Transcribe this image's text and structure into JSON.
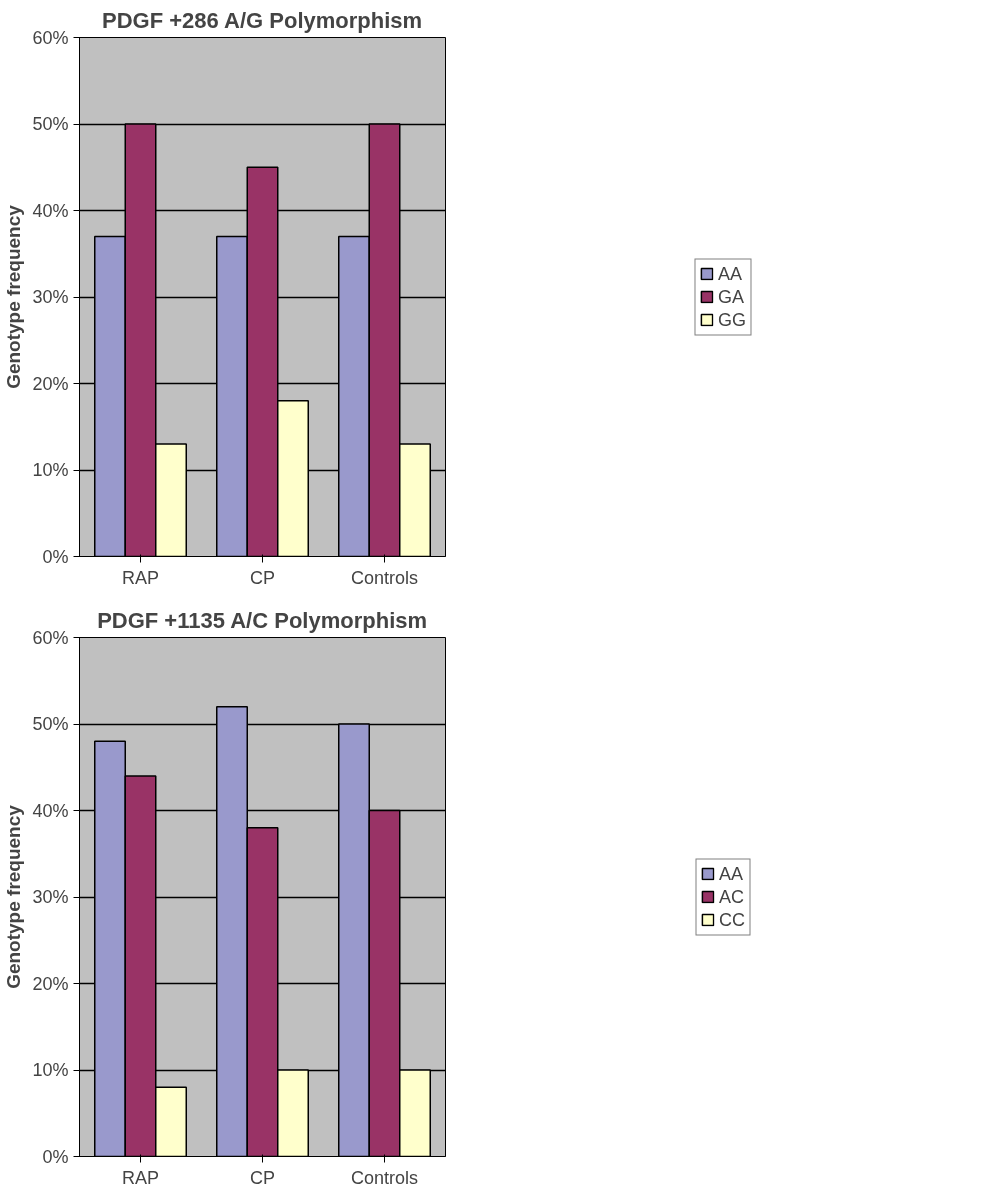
{
  "chart_data": [
    {
      "type": "bar",
      "title": "PDGF +286 A/G Polymorphism",
      "ylabel": "Genotype frequency",
      "categories": [
        "RAP",
        "CP",
        "Controls"
      ],
      "series": [
        {
          "name": "AA",
          "color": "#9999cc",
          "values": [
            37,
            37,
            37
          ]
        },
        {
          "name": "GA",
          "color": "#993366",
          "values": [
            50,
            45,
            50
          ]
        },
        {
          "name": "GG",
          "color": "#ffffcc",
          "values": [
            13,
            18,
            13
          ]
        }
      ],
      "ylim": [
        0,
        60
      ],
      "yticks": [
        {
          "value": 0,
          "label": "0%"
        },
        {
          "value": 10,
          "label": "10%"
        },
        {
          "value": 20,
          "label": "20%"
        },
        {
          "value": 30,
          "label": "30%"
        },
        {
          "value": 40,
          "label": "40%"
        },
        {
          "value": 50,
          "label": "50%"
        },
        {
          "value": 60,
          "label": "60%"
        }
      ],
      "grid": "y",
      "legend": "right"
    },
    {
      "type": "bar",
      "title": "PDGF +1135 A/C Polymorphism",
      "ylabel": "Genotype frequency",
      "categories": [
        "RAP",
        "CP",
        "Controls"
      ],
      "series": [
        {
          "name": "AA",
          "color": "#9999cc",
          "values": [
            48,
            52,
            50
          ]
        },
        {
          "name": "AC",
          "color": "#993366",
          "values": [
            44,
            38,
            40
          ]
        },
        {
          "name": "CC",
          "color": "#ffffcc",
          "values": [
            8,
            10,
            10
          ]
        }
      ],
      "ylim": [
        0,
        60
      ],
      "yticks": [
        {
          "value": 0,
          "label": "0%"
        },
        {
          "value": 10,
          "label": "10%"
        },
        {
          "value": 20,
          "label": "20%"
        },
        {
          "value": 30,
          "label": "30%"
        },
        {
          "value": 40,
          "label": "40%"
        },
        {
          "value": 50,
          "label": "50%"
        },
        {
          "value": 60,
          "label": "60%"
        }
      ],
      "grid": "y",
      "legend": "right"
    }
  ]
}
